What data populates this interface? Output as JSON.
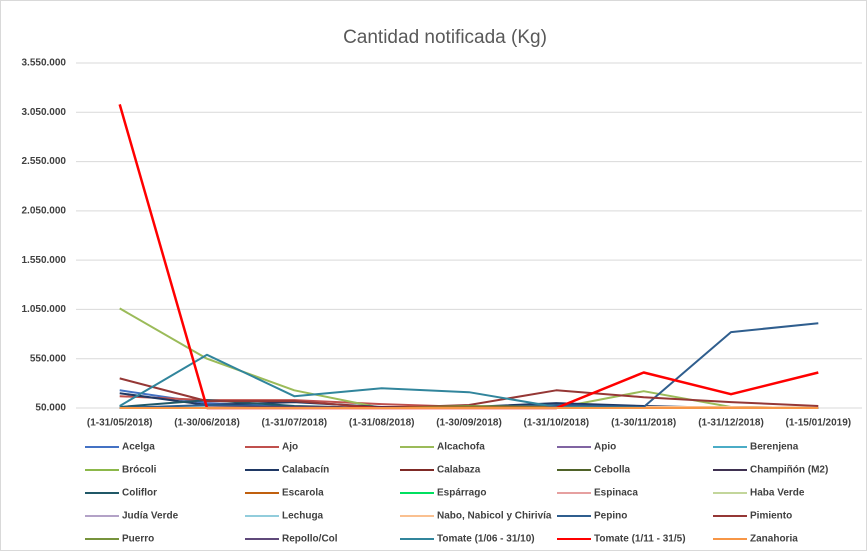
{
  "chart_data": {
    "type": "line",
    "title": "Cantidad notificada  (Kg)",
    "categories": [
      "(1-31/05/2018)",
      "(1-30/06/2018)",
      "(1-31/07/2018)",
      "(1-31/08/2018)",
      "(1-30/09/2018)",
      "(1-31/10/2018)",
      "(1-30/11/2018)",
      "(1-31/12/2018)",
      "(1-15/01/2019)"
    ],
    "ylim": [
      50000,
      3550000
    ],
    "yticks": [
      {
        "value": 50000,
        "label": "50.000"
      },
      {
        "value": 550000,
        "label": "550.000"
      },
      {
        "value": 1050000,
        "label": "1.050.000"
      },
      {
        "value": 1550000,
        "label": "1.550.000"
      },
      {
        "value": 2050000,
        "label": "2.050.000"
      },
      {
        "value": 2550000,
        "label": "2.550.000"
      },
      {
        "value": 3050000,
        "label": "3.050.000"
      },
      {
        "value": 3550000,
        "label": "3.550.000"
      }
    ],
    "grid": true,
    "series": [
      {
        "name": "Acelga",
        "color": "#4472c4",
        "values": [
          230000,
          100000,
          60000,
          50000,
          50000,
          50000,
          50000,
          50000,
          50000
        ]
      },
      {
        "name": "Ajo",
        "color": "#c0504d",
        "values": [
          170000,
          130000,
          130000,
          90000,
          60000,
          50000,
          50000,
          50000,
          50000
        ]
      },
      {
        "name": "Alcachofa",
        "color": "#9bbb59",
        "values": [
          1060000,
          550000,
          230000,
          50000,
          50000,
          50000,
          220000,
          60000,
          50000
        ]
      },
      {
        "name": "Apio",
        "color": "#8064a2",
        "values": [
          50000,
          50000,
          50000,
          50000,
          50000,
          50000,
          50000,
          50000,
          50000
        ]
      },
      {
        "name": "Berenjena",
        "color": "#4bacc6",
        "values": [
          60000,
          60000,
          50000,
          50000,
          50000,
          50000,
          50000,
          50000,
          50000
        ]
      },
      {
        "name": "Brócoli",
        "color": "#8cb84a",
        "values": [
          50000,
          50000,
          50000,
          50000,
          60000,
          70000,
          60000,
          50000,
          50000
        ]
      },
      {
        "name": "Calabacín",
        "color": "#1f3864",
        "values": [
          200000,
          80000,
          110000,
          60000,
          60000,
          100000,
          70000,
          50000,
          50000
        ]
      },
      {
        "name": "Calabaza",
        "color": "#7f2a26",
        "values": [
          50000,
          60000,
          50000,
          50000,
          50000,
          60000,
          50000,
          50000,
          50000
        ]
      },
      {
        "name": "Cebolla",
        "color": "#4f6228",
        "values": [
          50000,
          50000,
          50000,
          50000,
          50000,
          50000,
          50000,
          50000,
          50000
        ]
      },
      {
        "name": "Champiñón (M2)",
        "color": "#3f3151",
        "values": [
          50000,
          50000,
          50000,
          50000,
          50000,
          50000,
          50000,
          50000,
          50000
        ]
      },
      {
        "name": "Coliflor",
        "color": "#205867",
        "values": [
          60000,
          130000,
          70000,
          50000,
          50000,
          60000,
          50000,
          50000,
          50000
        ]
      },
      {
        "name": "Escarola",
        "color": "#c0600e",
        "values": [
          50000,
          50000,
          50000,
          50000,
          50000,
          50000,
          50000,
          60000,
          50000
        ]
      },
      {
        "name": "Espárrago",
        "color": "#00e060",
        "values": [
          50000,
          50000,
          50000,
          50000,
          50000,
          50000,
          50000,
          50000,
          50000
        ]
      },
      {
        "name": "Espinaca",
        "color": "#e6a0a0",
        "values": [
          50000,
          50000,
          50000,
          50000,
          50000,
          50000,
          50000,
          50000,
          50000
        ]
      },
      {
        "name": "Haba Verde",
        "color": "#c3d69b",
        "values": [
          50000,
          50000,
          50000,
          50000,
          50000,
          50000,
          50000,
          50000,
          50000
        ]
      },
      {
        "name": "Judía Verde",
        "color": "#b3a2c7",
        "values": [
          50000,
          50000,
          50000,
          50000,
          50000,
          50000,
          50000,
          50000,
          50000
        ]
      },
      {
        "name": "Lechuga",
        "color": "#92cddc",
        "values": [
          50000,
          60000,
          50000,
          50000,
          50000,
          50000,
          50000,
          50000,
          50000
        ]
      },
      {
        "name": "Nabo, Nabicol y Chirivía",
        "color": "#fac090",
        "values": [
          50000,
          50000,
          50000,
          50000,
          50000,
          50000,
          60000,
          60000,
          50000
        ]
      },
      {
        "name": "Pepino",
        "color": "#2f5e8e",
        "values": [
          50000,
          80000,
          60000,
          50000,
          50000,
          80000,
          60000,
          820000,
          910000
        ]
      },
      {
        "name": "Pimiento",
        "color": "#953735",
        "values": [
          350000,
          120000,
          120000,
          50000,
          80000,
          230000,
          160000,
          110000,
          70000
        ]
      },
      {
        "name": "Puerro",
        "color": "#77933c",
        "values": [
          50000,
          50000,
          50000,
          50000,
          70000,
          60000,
          50000,
          50000,
          50000
        ]
      },
      {
        "name": "Repollo/Col",
        "color": "#5f497a",
        "values": [
          50000,
          50000,
          50000,
          50000,
          50000,
          50000,
          50000,
          50000,
          50000
        ]
      },
      {
        "name": "Tomate (1/06 - 31/10)",
        "color": "#31859c",
        "values": [
          70000,
          590000,
          170000,
          250000,
          210000,
          60000,
          50000,
          50000,
          50000
        ]
      },
      {
        "name": "Tomate  (1/11 - 31/5)",
        "color": "#ff0000",
        "values": [
          3130000,
          50000,
          50000,
          50000,
          50000,
          50000,
          410000,
          190000,
          410000
        ]
      },
      {
        "name": "Zanahoria",
        "color": "#f79646",
        "values": [
          50000,
          50000,
          50000,
          50000,
          50000,
          50000,
          50000,
          50000,
          50000
        ]
      }
    ]
  }
}
